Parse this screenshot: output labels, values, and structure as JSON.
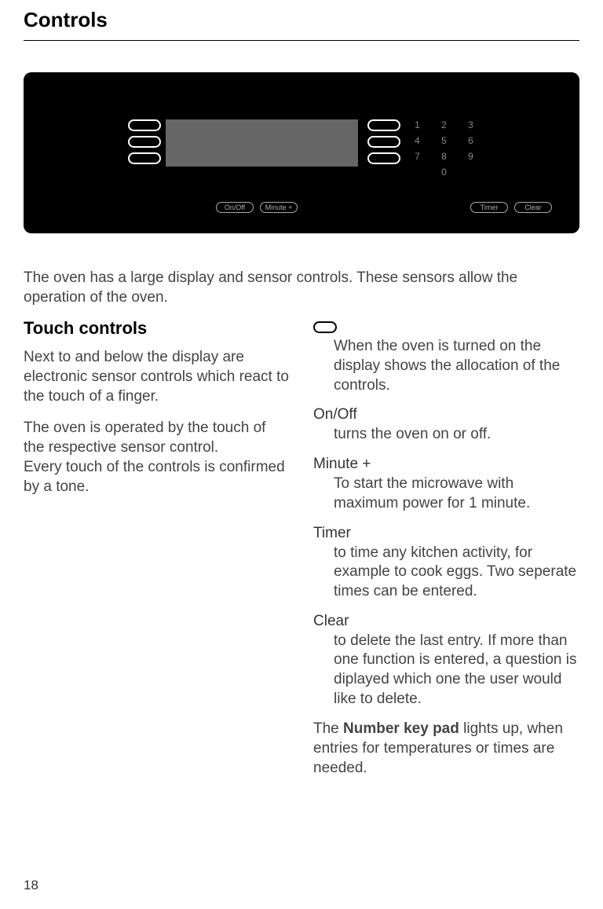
{
  "page": {
    "title": "Controls",
    "number": "18"
  },
  "panel": {
    "bg_color": "#000000",
    "display_color": "#666666",
    "key_color": "#888888",
    "border_color": "#ffffff",
    "keypad": [
      "1",
      "2",
      "3",
      "4",
      "5",
      "6",
      "7",
      "8",
      "9",
      "0"
    ],
    "left_buttons": 3,
    "right_buttons": 3,
    "label_buttons_left": [
      "On/Off",
      "Minute +"
    ],
    "label_buttons_right": [
      "Timer",
      "Clear"
    ]
  },
  "intro": "The oven has a large display and sensor controls. These sensors allow the operation of the oven.",
  "left_column": {
    "heading": "Touch controls",
    "para1": "Next to and below the display are electronic sensor controls which react to the touch of a finger.",
    "para2": "The oven is operated by the touch of the respective sensor control.\nEvery touch of the controls is confirmed by a tone."
  },
  "right_column": {
    "items": [
      {
        "term_icon": true,
        "desc": "When the oven is turned on the display shows the allocation of the controls."
      },
      {
        "term": "On/Off",
        "desc": "turns the oven on or off."
      },
      {
        "term": "Minute +",
        "desc": "To start the microwave with maximum power for 1 minute."
      },
      {
        "term": "Timer",
        "desc": "to time any kitchen activity, for example to cook eggs. Two seperate times can be entered."
      },
      {
        "term": "Clear",
        "desc": "to delete the last entry. If more than one function is entered, a question is diplayed which one the user would like to delete."
      }
    ],
    "final_prefix": "The ",
    "final_bold": "Number key pad",
    "final_suffix": " lights up, when entries for temperatures or times are needed."
  }
}
